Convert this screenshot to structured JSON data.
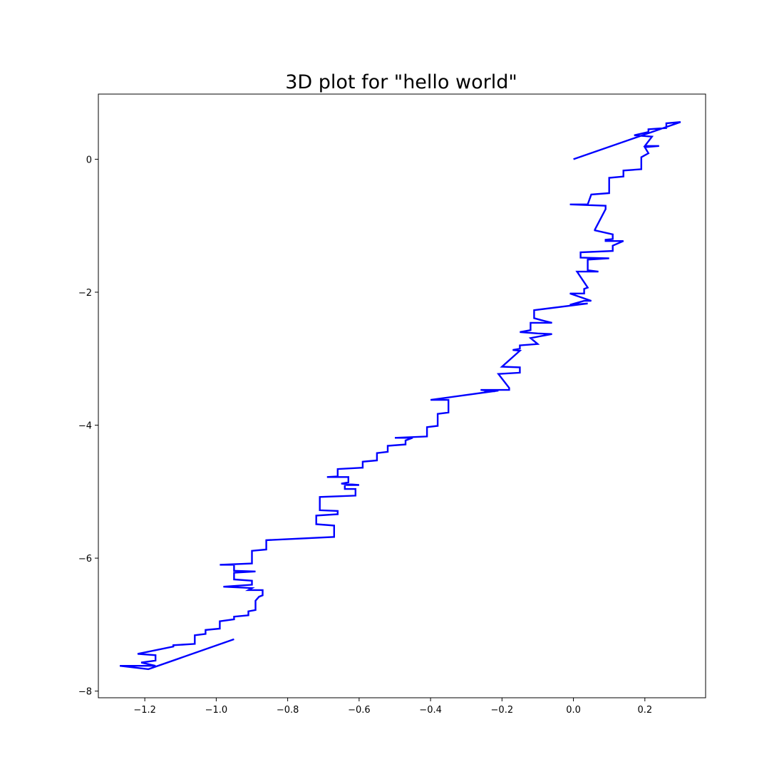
{
  "chart_data": {
    "type": "line",
    "title": "3D plot for \"hello world\"",
    "xlabel": "",
    "ylabel": "",
    "xlim": [
      -1.33,
      0.37
    ],
    "ylim": [
      -8.1,
      0.98
    ],
    "x_ticks": [
      {
        "value": -1.2,
        "label": "−1.2"
      },
      {
        "value": -1.0,
        "label": "−1.0"
      },
      {
        "value": -0.8,
        "label": "−0.8"
      },
      {
        "value": -0.6,
        "label": "−0.6"
      },
      {
        "value": -0.4,
        "label": "−0.4"
      },
      {
        "value": -0.2,
        "label": "−0.2"
      },
      {
        "value": 0.0,
        "label": "0.0"
      },
      {
        "value": 0.2,
        "label": "0.2"
      }
    ],
    "y_ticks": [
      {
        "value": 0,
        "label": "0"
      },
      {
        "value": -2,
        "label": "−2"
      },
      {
        "value": -4,
        "label": "−4"
      },
      {
        "value": -6,
        "label": "−6"
      },
      {
        "value": -8,
        "label": "−8"
      }
    ],
    "grid": false,
    "series": [
      {
        "color": "#0000ff",
        "x": [
          0.0,
          0.3,
          0.26,
          0.26,
          0.21,
          0.21,
          0.17,
          0.22,
          0.2,
          0.24,
          0.2,
          0.21,
          0.19,
          0.19,
          0.14,
          0.14,
          0.1,
          0.1,
          0.05,
          0.04,
          -0.01,
          0.09,
          0.09,
          0.06,
          0.06,
          0.11,
          0.11,
          0.09,
          0.09,
          0.14,
          0.11,
          0.11,
          0.02,
          0.02,
          0.1,
          0.04,
          0.04,
          0.07,
          0.01,
          0.04,
          0.03,
          0.03,
          -0.01,
          0.05,
          0.03,
          -0.01,
          0.04,
          -0.11,
          -0.11,
          -0.09,
          -0.06,
          -0.12,
          -0.12,
          -0.15,
          -0.1,
          -0.06,
          -0.12,
          -0.1,
          -0.15,
          -0.15,
          -0.17,
          -0.15,
          -0.2,
          -0.15,
          -0.15,
          -0.21,
          -0.18,
          -0.18,
          -0.26,
          -0.22,
          -0.25,
          -0.21,
          -0.4,
          -0.35,
          -0.35,
          -0.38,
          -0.38,
          -0.41,
          -0.41,
          -0.5,
          -0.45,
          -0.47,
          -0.47,
          -0.52,
          -0.52,
          -0.55,
          -0.55,
          -0.59,
          -0.59,
          -0.66,
          -0.66,
          -0.69,
          -0.63,
          -0.63,
          -0.65,
          -0.6,
          -0.64,
          -0.64,
          -0.61,
          -0.61,
          -0.71,
          -0.71,
          -0.66,
          -0.66,
          -0.72,
          -0.72,
          -0.67,
          -0.67,
          -0.86,
          -0.86,
          -0.9,
          -0.9,
          -0.99,
          -0.95,
          -0.95,
          -0.89,
          -0.95,
          -0.95,
          -0.9,
          -0.9,
          -0.98,
          -0.9,
          -0.91,
          -0.87,
          -0.87,
          -0.88,
          -0.89,
          -0.89,
          -0.91,
          -0.91,
          -0.95,
          -0.95,
          -0.99,
          -0.99,
          -1.03,
          -1.03,
          -1.06,
          -1.06,
          -1.12,
          -1.12,
          -1.22,
          -1.17,
          -1.17,
          -1.21,
          -1.17,
          -1.27,
          -1.19,
          -0.95
        ],
        "y": [
          0.0,
          0.56,
          0.54,
          0.47,
          0.45,
          0.41,
          0.36,
          0.34,
          0.2,
          0.2,
          0.18,
          0.09,
          0.03,
          -0.15,
          -0.17,
          -0.26,
          -0.28,
          -0.51,
          -0.53,
          -0.68,
          -0.68,
          -0.7,
          -0.75,
          -1.06,
          -1.07,
          -1.13,
          -1.2,
          -1.21,
          -1.23,
          -1.23,
          -1.3,
          -1.38,
          -1.4,
          -1.48,
          -1.49,
          -1.51,
          -1.67,
          -1.69,
          -1.69,
          -1.93,
          -1.95,
          -2.02,
          -2.02,
          -2.13,
          -2.13,
          -2.19,
          -2.17,
          -2.27,
          -2.39,
          -2.42,
          -2.46,
          -2.46,
          -2.57,
          -2.6,
          -2.62,
          -2.63,
          -2.69,
          -2.78,
          -2.8,
          -2.85,
          -2.87,
          -2.88,
          -3.12,
          -3.13,
          -3.21,
          -3.23,
          -3.44,
          -3.47,
          -3.47,
          -3.49,
          -3.49,
          -3.48,
          -3.62,
          -3.62,
          -3.81,
          -3.83,
          -4.01,
          -4.03,
          -4.17,
          -4.19,
          -4.19,
          -4.23,
          -4.29,
          -4.31,
          -4.4,
          -4.42,
          -4.53,
          -4.55,
          -4.64,
          -4.66,
          -4.77,
          -4.78,
          -4.78,
          -4.86,
          -4.88,
          -4.9,
          -4.9,
          -4.96,
          -4.96,
          -5.06,
          -5.08,
          -5.28,
          -5.29,
          -5.34,
          -5.36,
          -5.49,
          -5.51,
          -5.68,
          -5.73,
          -5.87,
          -5.89,
          -6.08,
          -6.1,
          -6.1,
          -6.19,
          -6.2,
          -6.22,
          -6.32,
          -6.34,
          -6.4,
          -6.43,
          -6.45,
          -6.48,
          -6.48,
          -6.56,
          -6.58,
          -6.64,
          -6.78,
          -6.8,
          -6.86,
          -6.88,
          -6.92,
          -6.95,
          -7.06,
          -7.08,
          -7.14,
          -7.16,
          -7.29,
          -7.31,
          -7.33,
          -7.44,
          -7.46,
          -7.54,
          -7.57,
          -7.62,
          -7.62,
          -7.67,
          -7.22
        ]
      }
    ]
  }
}
